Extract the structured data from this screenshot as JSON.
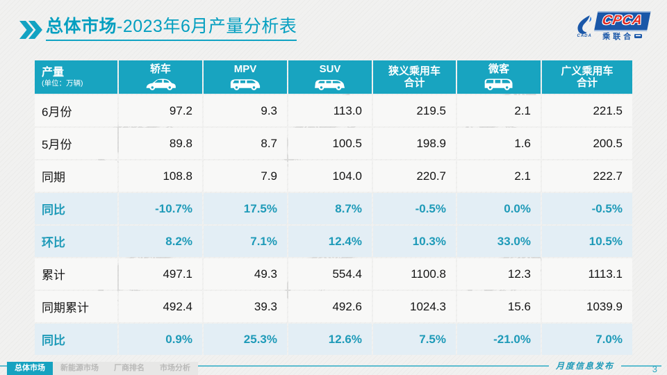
{
  "slide": {
    "title_bold": "总体市场",
    "title_rest": "-2023年6月产量分析表",
    "footer_note": "月度信息发布",
    "page_number": "3"
  },
  "logo": {
    "name": "CPCA",
    "sub": "乘联合",
    "emblem_sub": "CADA"
  },
  "table": {
    "unit_title": "产量",
    "unit_sub": "(单位：万辆)",
    "columns": [
      {
        "label": "轿车",
        "icon": "sedan-icon"
      },
      {
        "label": "MPV",
        "icon": "mpv-icon"
      },
      {
        "label": "SUV",
        "icon": "suv-icon"
      },
      {
        "label": "狭义乘用车",
        "label2": "合计"
      },
      {
        "label": "微客",
        "icon": "microvan-icon"
      },
      {
        "label": "广义乘用车",
        "label2": "合计"
      }
    ],
    "rows": [
      {
        "label": "6月份",
        "highlight": false,
        "values": [
          "97.2",
          "9.3",
          "113.0",
          "219.5",
          "2.1",
          "221.5"
        ]
      },
      {
        "label": "5月份",
        "highlight": false,
        "values": [
          "89.8",
          "8.7",
          "100.5",
          "198.9",
          "1.6",
          "200.5"
        ]
      },
      {
        "label": "同期",
        "highlight": false,
        "values": [
          "108.8",
          "7.9",
          "104.0",
          "220.7",
          "2.1",
          "222.7"
        ]
      },
      {
        "label": "同比",
        "highlight": true,
        "values": [
          "-10.7%",
          "17.5%",
          "8.7%",
          "-0.5%",
          "0.0%",
          "-0.5%"
        ]
      },
      {
        "label": "环比",
        "highlight": true,
        "values": [
          "8.2%",
          "7.1%",
          "12.4%",
          "10.3%",
          "33.0%",
          "10.5%"
        ]
      },
      {
        "label": "累计",
        "highlight": false,
        "values": [
          "497.1",
          "49.3",
          "554.4",
          "1100.8",
          "12.3",
          "1113.1"
        ]
      },
      {
        "label": "同期累计",
        "highlight": false,
        "values": [
          "492.4",
          "39.3",
          "492.6",
          "1024.3",
          "15.6",
          "1039.9"
        ]
      },
      {
        "label": "同比",
        "highlight": true,
        "values": [
          "0.9%",
          "25.3%",
          "12.6%",
          "7.5%",
          "-21.0%",
          "7.0%"
        ]
      }
    ]
  },
  "footer": {
    "tabs": [
      {
        "label": "总体市场",
        "active": true
      },
      {
        "label": "新能源市场",
        "active": false
      },
      {
        "label": "厂商排名",
        "active": false
      },
      {
        "label": "市场分析",
        "active": false
      }
    ]
  },
  "colors": {
    "accent": "#18a4c0",
    "title_teal": "#049fc0",
    "highlight_bg": "#e3eef5",
    "highlight_text": "#1e9ab8",
    "logo_blue": "#1a57a8",
    "logo_red": "#e02a22"
  }
}
